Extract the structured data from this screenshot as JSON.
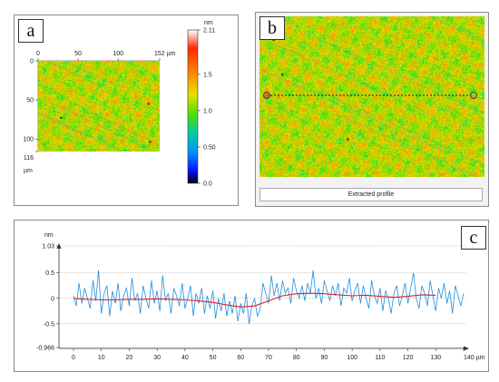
{
  "panels": {
    "a": {
      "label": "a"
    },
    "b": {
      "label": "b",
      "button_label": "Extracted profile"
    },
    "c": {
      "label": "c"
    }
  },
  "surface_map": {
    "x_ticks": [
      "0",
      "50",
      "100",
      "152 µm"
    ],
    "y_ticks": [
      "0",
      "50",
      "100",
      "116"
    ],
    "y_unit": "µm"
  },
  "colorbar": {
    "unit": "nm",
    "ticks": [
      "2.11",
      "1.5",
      "1.0",
      "0.50",
      "0.0"
    ],
    "colors": [
      "#ffffff",
      "#ff2a00",
      "#ff9000",
      "#e8e000",
      "#4ce000",
      "#00c8b0",
      "#0090ff",
      "#0010ff",
      "#000000"
    ]
  },
  "colors": {
    "profile": "#1f8fe0",
    "trend": "#e02020"
  },
  "chart_data": {
    "type": "line",
    "ylabel": "nm",
    "xlim": [
      0,
      140
    ],
    "ylim": [
      -0.966,
      1.03
    ],
    "x_unit": "µm",
    "y_ticks": [
      "1.03",
      "0.5",
      "0",
      "-0.5",
      "-0.966"
    ],
    "x_ticks": [
      "0",
      "10",
      "20",
      "30",
      "40",
      "50",
      "60",
      "70",
      "80",
      "90",
      "100",
      "110",
      "120",
      "130",
      "140 µm"
    ],
    "series": [
      {
        "values_description": "roughness",
        "x": [
          0,
          1,
          2,
          3,
          4,
          5,
          6,
          7,
          8,
          9,
          10,
          11,
          12,
          13,
          14,
          15,
          16,
          17,
          18,
          19,
          20,
          21,
          22,
          23,
          24,
          25,
          26,
          27,
          28,
          29,
          30,
          31,
          32,
          33,
          34,
          35,
          36,
          37,
          38,
          39,
          40,
          41,
          42,
          43,
          44,
          45,
          46,
          47,
          48,
          49,
          50,
          51,
          52,
          53,
          54,
          55,
          56,
          57,
          58,
          59,
          60,
          61,
          62,
          63,
          64,
          65,
          66,
          67,
          68,
          69,
          70,
          71,
          72,
          73,
          74,
          75,
          76,
          77,
          78,
          79,
          80,
          81,
          82,
          83,
          84,
          85,
          86,
          87,
          88,
          89,
          90,
          91,
          92,
          93,
          94,
          95,
          96,
          97,
          98,
          99,
          100,
          101,
          102,
          103,
          104,
          105,
          106,
          107,
          108,
          109,
          110,
          111,
          112,
          113,
          114,
          115,
          116,
          117,
          118,
          119,
          120,
          121,
          122,
          123,
          124,
          125,
          126,
          127,
          128,
          129,
          130,
          131,
          132,
          133,
          134,
          135,
          136,
          137,
          138,
          139,
          140
        ],
        "y": [
          0.05,
          -0.15,
          0.3,
          -0.1,
          0.2,
          0.0,
          -0.2,
          0.35,
          -0.05,
          0.55,
          -0.3,
          0.1,
          0.25,
          -0.35,
          0.15,
          -0.1,
          0.3,
          -0.25,
          0.05,
          0.2,
          -0.15,
          0.4,
          -0.05,
          0.1,
          -0.3,
          0.25,
          0.0,
          -0.2,
          0.35,
          -0.1,
          0.15,
          -0.25,
          0.45,
          -0.05,
          0.1,
          -0.3,
          0.2,
          0.05,
          -0.15,
          0.3,
          -0.2,
          0.0,
          0.25,
          -0.35,
          0.1,
          -0.1,
          0.2,
          -0.3,
          0.05,
          -0.2,
          0.15,
          -0.4,
          0.0,
          -0.25,
          0.1,
          -0.35,
          -0.05,
          -0.3,
          0.05,
          -0.45,
          -0.1,
          -0.3,
          0.1,
          -0.5,
          -0.15,
          0.0,
          -0.35,
          -0.2,
          0.3,
          0.1,
          -0.1,
          0.45,
          0.05,
          0.3,
          -0.05,
          0.35,
          0.1,
          0.2,
          -0.1,
          0.4,
          0.15,
          0.0,
          0.25,
          -0.05,
          0.3,
          0.1,
          0.55,
          0.0,
          0.2,
          -0.1,
          0.35,
          0.15,
          -0.05,
          0.25,
          0.05,
          0.3,
          -0.15,
          0.2,
          0.1,
          0.4,
          -0.05,
          0.15,
          0.3,
          -0.1,
          0.25,
          0.0,
          -0.2,
          0.35,
          0.05,
          -0.1,
          0.2,
          -0.25,
          0.15,
          0.0,
          -0.3,
          0.1,
          0.25,
          -0.15,
          0.05,
          0.3,
          -0.1,
          0.2,
          0.5,
          0.0,
          -0.2,
          0.25,
          0.1,
          -0.15,
          0.35,
          0.05,
          -0.25,
          0.2,
          0.0,
          0.3,
          -0.1,
          0.15,
          -0.3,
          0.25,
          0.05,
          -0.15,
          0.1
        ]
      },
      {
        "values_description": "trend",
        "x": [
          0,
          5,
          10,
          15,
          20,
          25,
          30,
          35,
          40,
          45,
          50,
          55,
          60,
          65,
          70,
          75,
          80,
          85,
          90,
          95,
          100,
          105,
          110,
          115,
          120,
          125,
          130
        ],
        "y": [
          0.0,
          -0.02,
          -0.03,
          -0.03,
          -0.02,
          -0.02,
          -0.01,
          -0.02,
          -0.03,
          -0.05,
          -0.08,
          -0.13,
          -0.17,
          -0.15,
          -0.05,
          0.05,
          0.09,
          0.1,
          0.09,
          0.07,
          0.05,
          0.06,
          0.04,
          0.02,
          0.04,
          0.07,
          0.06
        ]
      }
    ]
  }
}
